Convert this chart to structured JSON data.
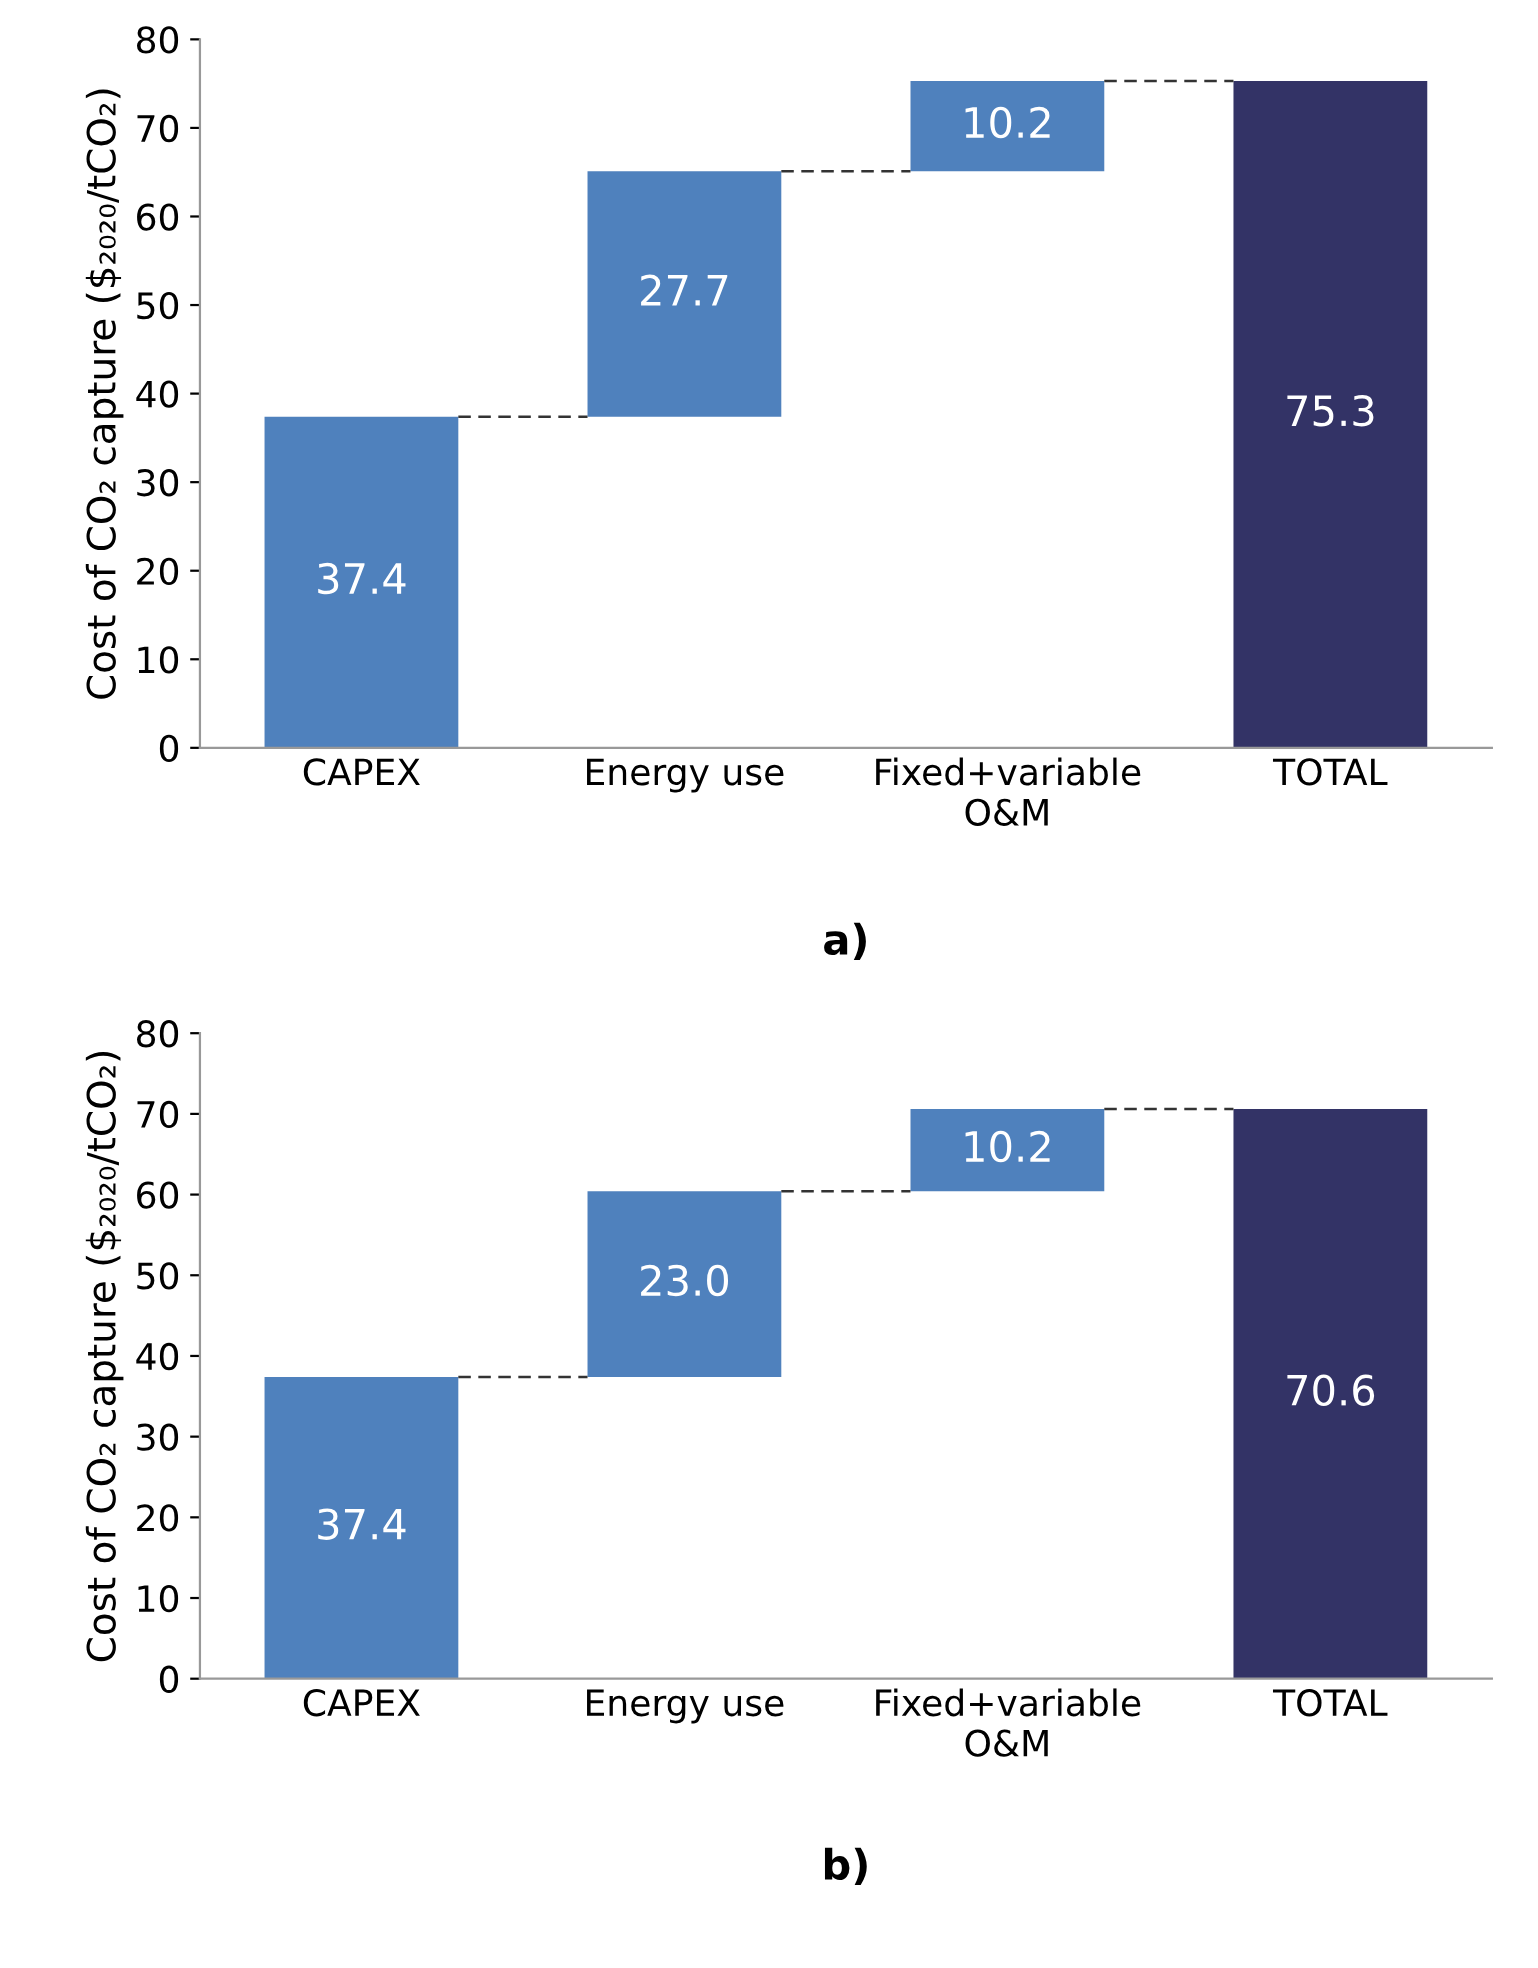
{
  "chart_data": [
    {
      "type": "bar",
      "ylabel": "Cost of CO₂ capture ($₂₀₂₀/tCO₂)",
      "categories": [
        "CAPEX",
        "Energy use",
        "Fixed+variable\nO&M",
        "TOTAL"
      ],
      "values": [
        37.4,
        27.7,
        10.2,
        75.3
      ],
      "value_labels": [
        "37.4",
        "27.7",
        "10.2",
        "75.3"
      ],
      "base": [
        0,
        37.4,
        65.1,
        0
      ],
      "colors": [
        "#4f81bd",
        "#4f81bd",
        "#4f81bd",
        "#333366"
      ],
      "ylim": [
        0,
        80
      ],
      "yticks": [
        0,
        10,
        20,
        30,
        40,
        50,
        60,
        70,
        80
      ],
      "grid": false,
      "legend": false,
      "annotations": [
        "a)"
      ]
    },
    {
      "type": "bar",
      "ylabel": "Cost of CO₂ capture ($₂₀₂₀/tCO₂)",
      "categories": [
        "CAPEX",
        "Energy use",
        "Fixed+variable\nO&M",
        "TOTAL"
      ],
      "values": [
        37.4,
        23.0,
        10.2,
        70.6
      ],
      "value_labels": [
        "37.4",
        "23.0",
        "10.2",
        "70.6"
      ],
      "base": [
        0,
        37.4,
        60.4,
        0
      ],
      "colors": [
        "#4f81bd",
        "#4f81bd",
        "#4f81bd",
        "#333366"
      ],
      "ylim": [
        0,
        80
      ],
      "yticks": [
        0,
        10,
        20,
        30,
        40,
        50,
        60,
        70,
        80
      ],
      "grid": false,
      "legend": false,
      "annotations": [
        "b)"
      ]
    }
  ]
}
